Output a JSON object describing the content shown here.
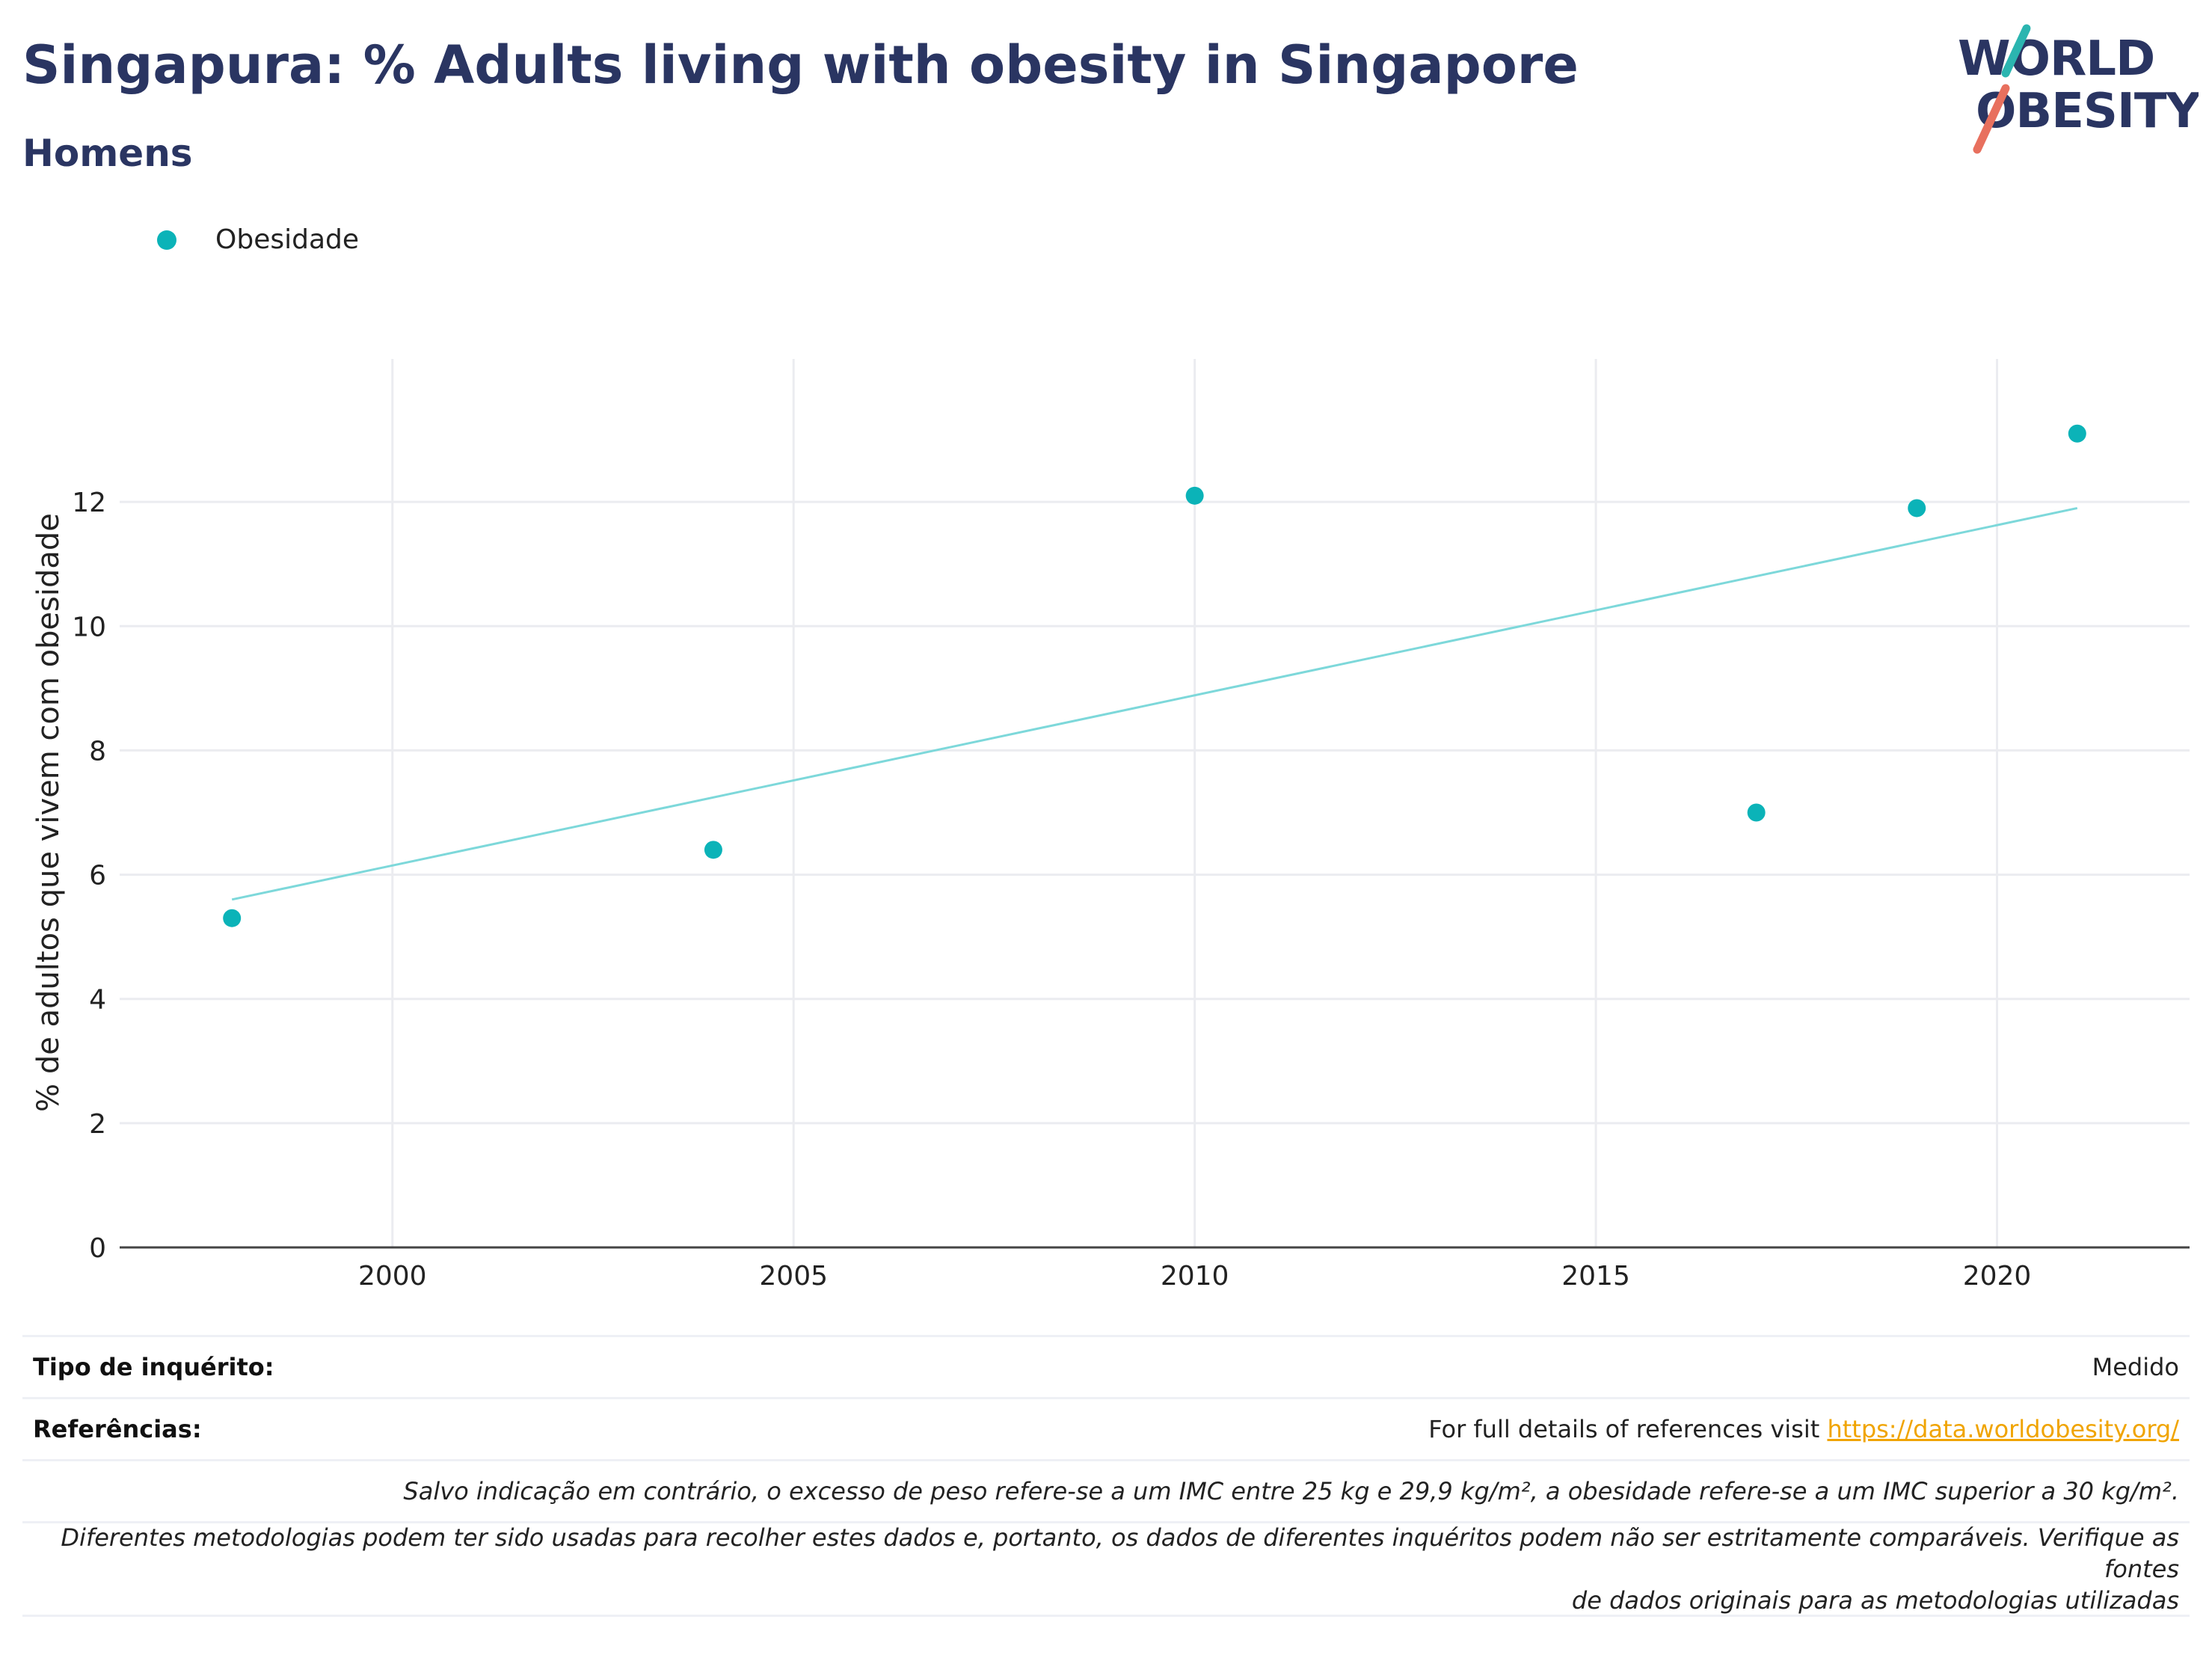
{
  "header": {
    "title": "Singapura: % Adults living with obesity in Singapore",
    "subtitle": "Homens"
  },
  "logo": {
    "line1": "WORLD",
    "line2": "OBESITY"
  },
  "legend": {
    "label": "Obesidade",
    "color": "#0bb3b8"
  },
  "chart_data": {
    "type": "scatter",
    "title": "Singapura: % Adults living with obesity in Singapore",
    "subtitle": "Homens",
    "xlabel": "",
    "ylabel": "% de adultos que vivem com obesidade",
    "xlim": [
      1996.6,
      2022.4
    ],
    "ylim": [
      0,
      14
    ],
    "xticks": [
      2000,
      2005,
      2010,
      2015,
      2020
    ],
    "yticks": [
      0,
      2,
      4,
      6,
      8,
      10,
      12
    ],
    "grid": true,
    "legend_position": "top-left",
    "series": [
      {
        "name": "Obesidade",
        "color": "#0bb3b8",
        "points": [
          {
            "x": 1998,
            "y": 5.3
          },
          {
            "x": 2004,
            "y": 6.4
          },
          {
            "x": 2010,
            "y": 12.1
          },
          {
            "x": 2017,
            "y": 7.0
          },
          {
            "x": 2019,
            "y": 11.9
          },
          {
            "x": 2021,
            "y": 13.1
          }
        ]
      }
    ],
    "trendline": {
      "color": "#7dd8da",
      "x": [
        1998,
        2021
      ],
      "y": [
        5.6,
        11.9
      ]
    }
  },
  "footer": {
    "survey_label": "Tipo de inquérito:",
    "survey_value": "Medido",
    "refs_label": "Referências:",
    "refs_text": "For full details of references visit ",
    "refs_link": "https://data.worldobesity.org/",
    "note1": "Salvo indicação em contrário, o excesso de peso refere-se a um IMC entre 25 kg e 29,9 kg/m², a obesidade refere-se a um IMC superior a 30 kg/m².",
    "note2a": "Diferentes metodologias podem ter sido usadas para recolher estes dados e, portanto, os dados de diferentes inquéritos podem não ser estritamente comparáveis. Verifique as fontes",
    "note2b": "de dados originais para as metodologias utilizadas"
  }
}
